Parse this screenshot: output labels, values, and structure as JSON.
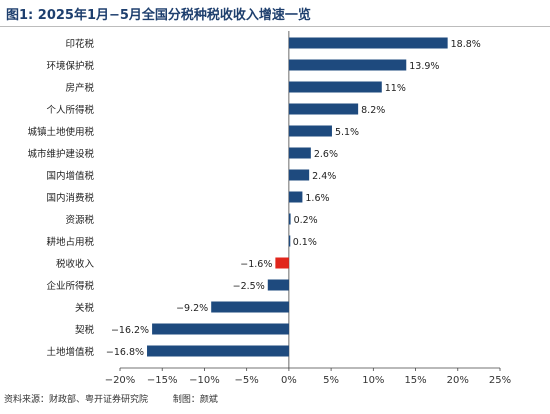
{
  "title": "图1: 2025年1月−5月全国分税种税收收入增速一览",
  "source": "资料来源：财政部、粤开证券研究院",
  "author": "制图：颜斌",
  "colors": {
    "bar": "#1e4a7e",
    "highlight": "#e1261c"
  },
  "chart_data": {
    "type": "bar",
    "orientation": "horizontal",
    "categories": [
      "印花税",
      "环境保护税",
      "房产税",
      "个人所得税",
      "城镇土地使用税",
      "城市维护建设税",
      "国内增值税",
      "国内消费税",
      "资源税",
      "耕地占用税",
      "税收收入",
      "企业所得税",
      "关税",
      "契税",
      "土地增值税"
    ],
    "values": [
      18.8,
      13.9,
      11,
      8.2,
      5.1,
      2.6,
      2.4,
      1.6,
      0.2,
      0.1,
      -1.6,
      -2.5,
      -9.2,
      -16.2,
      -16.8
    ],
    "value_labels": [
      "18.8%",
      "13.9%",
      "11%",
      "8.2%",
      "5.1%",
      "2.6%",
      "2.4%",
      "1.6%",
      "0.2%",
      "0.1%",
      "−1.6%",
      "−2.5%",
      "−9.2%",
      "−16.2%",
      "−16.8%"
    ],
    "highlight": "税收收入",
    "xlim": [
      -20,
      25
    ],
    "xticks": [
      -20,
      -15,
      -10,
      -5,
      0,
      5,
      10,
      15,
      20,
      25
    ],
    "xtick_labels": [
      "−20%",
      "−15%",
      "−10%",
      "−5%",
      "0%",
      "5%",
      "10%",
      "15%",
      "20%",
      "25%"
    ],
    "grid": false,
    "legend": "none"
  }
}
